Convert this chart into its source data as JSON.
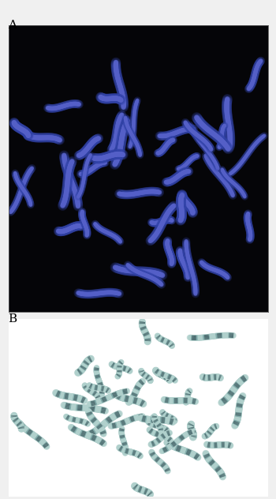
{
  "label_A": "A",
  "label_B": "B",
  "label_fontsize": 11,
  "fig_width": 3.5,
  "fig_height": 6.32,
  "fig_dpi": 100,
  "outer_bg": "#f0f0f0",
  "panel_A_bg": "#050508",
  "panel_B_bg": "#ffffff",
  "chrom_color_A_core": "#5560c8",
  "chrom_color_A_glow": "#3344aa",
  "chrom_color_B_light": "#b0d0cc",
  "chrom_color_B_dark": "#2a4a50",
  "chrom_color_B_mid": "#6a9a9a",
  "seed_A": 7,
  "seed_B": 13,
  "num_chrom": 46
}
